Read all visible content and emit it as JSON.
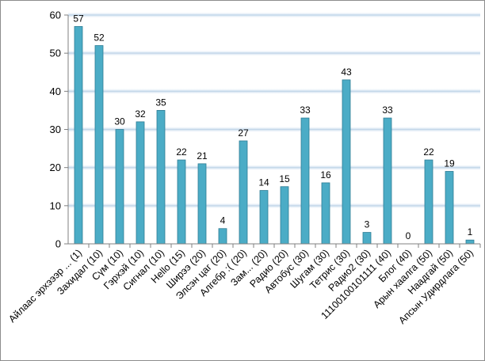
{
  "chart_data": {
    "type": "bar",
    "categories": [
      "Айлаас эрхэээр ... (1)",
      "Захидал (10)",
      "Сүм (10)",
      "Гэрхэй (10)",
      "Сигнал (10)",
      "Hello (15)",
      "Ширээ (20)",
      "Элсэн цаг (20)",
      "Алгебр :( (20)",
      "Зам... (20)",
      "Радио (20)",
      "Автобус (30)",
      "Шугам (30)",
      "Тетрис (30)",
      "Радио2 (30)",
      "11100100101111 (40)",
      "Блог (40)",
      "Арын хаалга (50)",
      "Наадгай (50)",
      "Апсын Удирдлага (50)"
    ],
    "values": [
      57,
      52,
      30,
      32,
      35,
      22,
      21,
      4,
      27,
      14,
      15,
      33,
      16,
      43,
      3,
      33,
      0,
      22,
      19,
      1
    ],
    "data_labels": [
      "57",
      "52",
      "30",
      "32",
      "35",
      "22",
      "21",
      "4",
      "27",
      "14",
      "15",
      "33",
      "16",
      "43",
      "3",
      "33",
      "0",
      "22",
      "19",
      "1"
    ],
    "ylim": [
      0,
      60
    ],
    "yticks": [
      "0",
      "10",
      "20",
      "30",
      "40",
      "50",
      "60"
    ],
    "title": "",
    "xlabel": "",
    "ylabel": "",
    "grid": true,
    "legend": "none",
    "colors": {
      "bar_fill": "#4bacc6",
      "bar_stroke": "#2e7d95",
      "gridline": "#c5d8ea",
      "axis": "#808080",
      "frame": "#8c8c8c"
    }
  }
}
